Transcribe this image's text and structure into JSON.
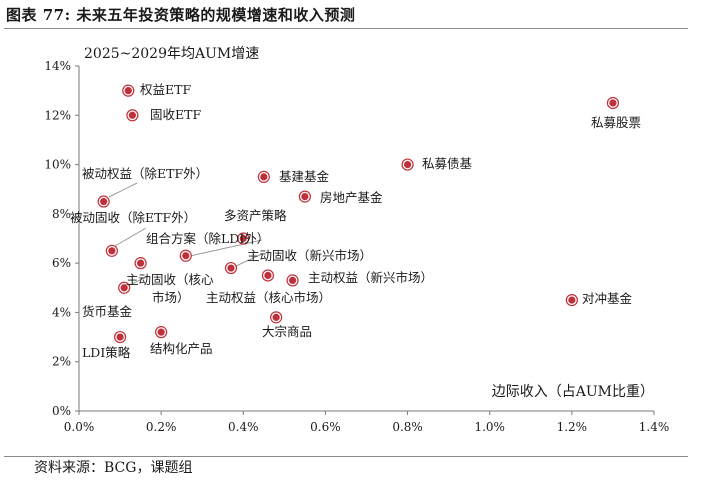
{
  "figure": {
    "title": "图表 77: 未来五年投资策略的规模增速和收入预测",
    "source": "资料来源：BCG，课题组"
  },
  "chart_data": {
    "type": "scatter",
    "title": "2025~2029年均AUM增速",
    "xlabel": "边际收入（占AUM比重）",
    "ylabel": "2025~2029年均AUM增速",
    "xlim": [
      0.0,
      1.4
    ],
    "ylim": [
      0,
      14
    ],
    "x_unit": "%",
    "y_unit": "%",
    "xticks": [
      "0.0%",
      "0.2%",
      "0.4%",
      "0.6%",
      "0.8%",
      "1.0%",
      "1.2%",
      "1.4%"
    ],
    "yticks": [
      "0%",
      "2%",
      "4%",
      "6%",
      "8%",
      "10%",
      "12%",
      "14%"
    ],
    "grid": false,
    "legend": "none",
    "marker_color": "#c0303a",
    "points": [
      {
        "name": "权益ETF",
        "x": 0.12,
        "y": 13.0
      },
      {
        "name": "固收ETF",
        "x": 0.13,
        "y": 12.0
      },
      {
        "name": "私募股票",
        "x": 1.3,
        "y": 12.5
      },
      {
        "name": "私募债基",
        "x": 0.8,
        "y": 10.0
      },
      {
        "name": "基建基金",
        "x": 0.45,
        "y": 9.5
      },
      {
        "name": "房地产基金",
        "x": 0.55,
        "y": 8.7
      },
      {
        "name": "被动权益（除ETF外）",
        "x": 0.06,
        "y": 8.5
      },
      {
        "name": "多资产策略",
        "x": 0.4,
        "y": 7.0
      },
      {
        "name": "被动固收（除ETF外）",
        "x": 0.08,
        "y": 6.5
      },
      {
        "name": "组合方案（除LDI外）",
        "x": 0.26,
        "y": 6.3
      },
      {
        "name": "主动固收（新兴市场）",
        "x": 0.37,
        "y": 5.8
      },
      {
        "name": "主动固收（核心市场）",
        "x": 0.15,
        "y": 6.0
      },
      {
        "name": "主动权益（新兴市场）",
        "x": 0.52,
        "y": 5.3
      },
      {
        "name": "主动权益（核心市场）",
        "x": 0.46,
        "y": 5.5
      },
      {
        "name": "货币基金",
        "x": 0.11,
        "y": 5.0
      },
      {
        "name": "对冲基金",
        "x": 1.2,
        "y": 4.5
      },
      {
        "name": "大宗商品",
        "x": 0.48,
        "y": 3.8
      },
      {
        "name": "结构化产品",
        "x": 0.2,
        "y": 3.2
      },
      {
        "name": "LDI策略",
        "x": 0.1,
        "y": 3.0
      }
    ]
  }
}
